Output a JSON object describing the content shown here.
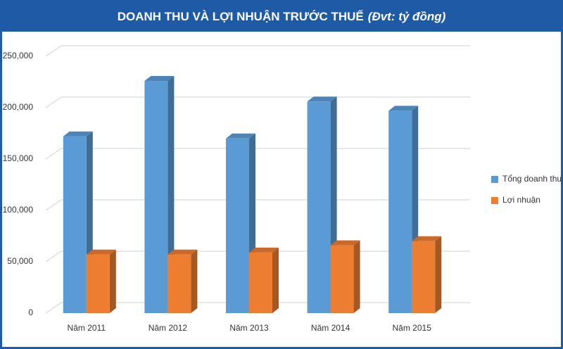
{
  "chart_data": {
    "type": "bar3d",
    "title": "DOANH THU VÀ LỢI NHUẬN TRƯỚC THUẾ",
    "subtitle": "(Đvt: tỷ đồng)",
    "categories": [
      "Năm 2011",
      "Năm 2012",
      "Năm 2013",
      "Năm 2014",
      "Năm 2015"
    ],
    "series": [
      {
        "name": "Tổng doanh thu",
        "color": "#5b9bd5",
        "values": [
          172000,
          226000,
          170000,
          206000,
          197000
        ]
      },
      {
        "name": "Lợi nhuận",
        "color": "#ed7d31",
        "values": [
          57000,
          57000,
          59000,
          66000,
          70000
        ]
      }
    ],
    "ylim": [
      0,
      250000
    ],
    "yticks": [
      0,
      {
        "value": 50000,
        "label": "50,000"
      },
      {
        "value": 100000,
        "label": "100,000"
      },
      {
        "value": 150000,
        "label": "150,000"
      },
      {
        "value": 200000,
        "label": "200,000"
      },
      {
        "value": 250000,
        "label": "250,000"
      }
    ],
    "grid": true,
    "legend": "right"
  }
}
